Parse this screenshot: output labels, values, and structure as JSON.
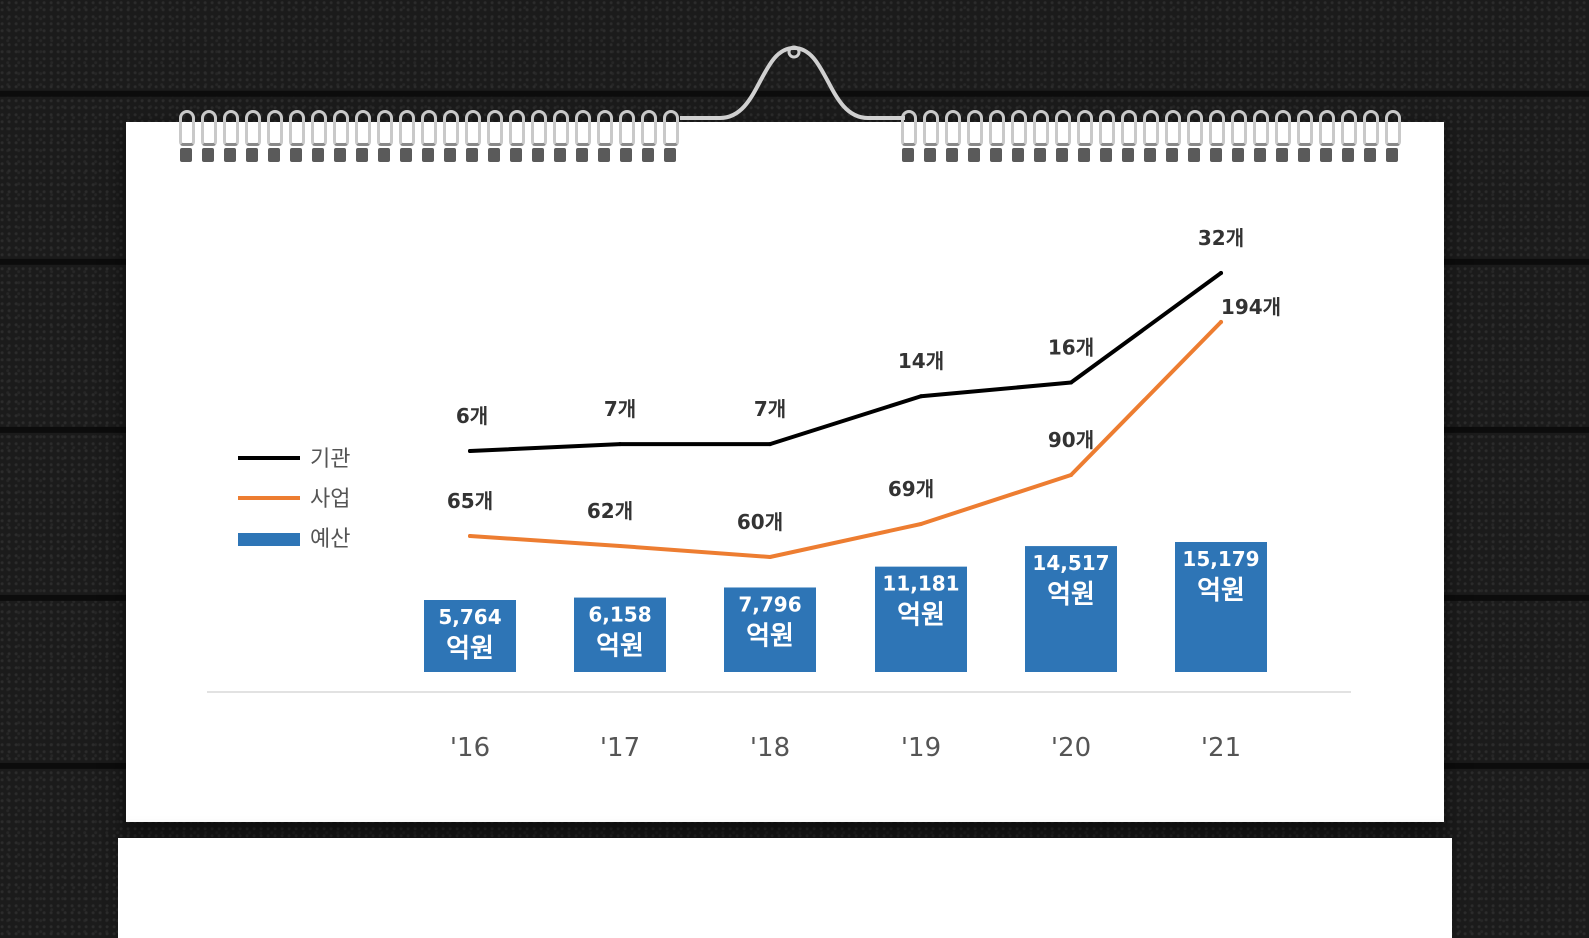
{
  "chart_data": {
    "type": "bar",
    "categories": [
      "'16",
      "'17",
      "'18",
      "'19",
      "'20",
      "'21"
    ],
    "series": [
      {
        "name": "기관",
        "type": "line",
        "color": "#000000",
        "values": [
          6,
          7,
          7,
          14,
          16,
          32
        ],
        "labels": [
          "6개",
          "7개",
          "7개",
          "14개",
          "16개",
          "32개"
        ]
      },
      {
        "name": "사업",
        "type": "line",
        "color": "#ed7d31",
        "values": [
          65,
          62,
          60,
          69,
          90,
          194
        ],
        "labels": [
          "65개",
          "62개",
          "60개",
          "69개",
          "90개",
          "194개"
        ]
      },
      {
        "name": "예산",
        "type": "bar",
        "color": "#2e75b6",
        "values": [
          5764,
          6158,
          7796,
          11181,
          14517,
          15179
        ],
        "labels": [
          "5,764",
          "6,158",
          "7,796",
          "11,181",
          "14,517",
          "15,179"
        ],
        "unit_label": "억원"
      }
    ],
    "legend_position": "left",
    "grid": false
  }
}
